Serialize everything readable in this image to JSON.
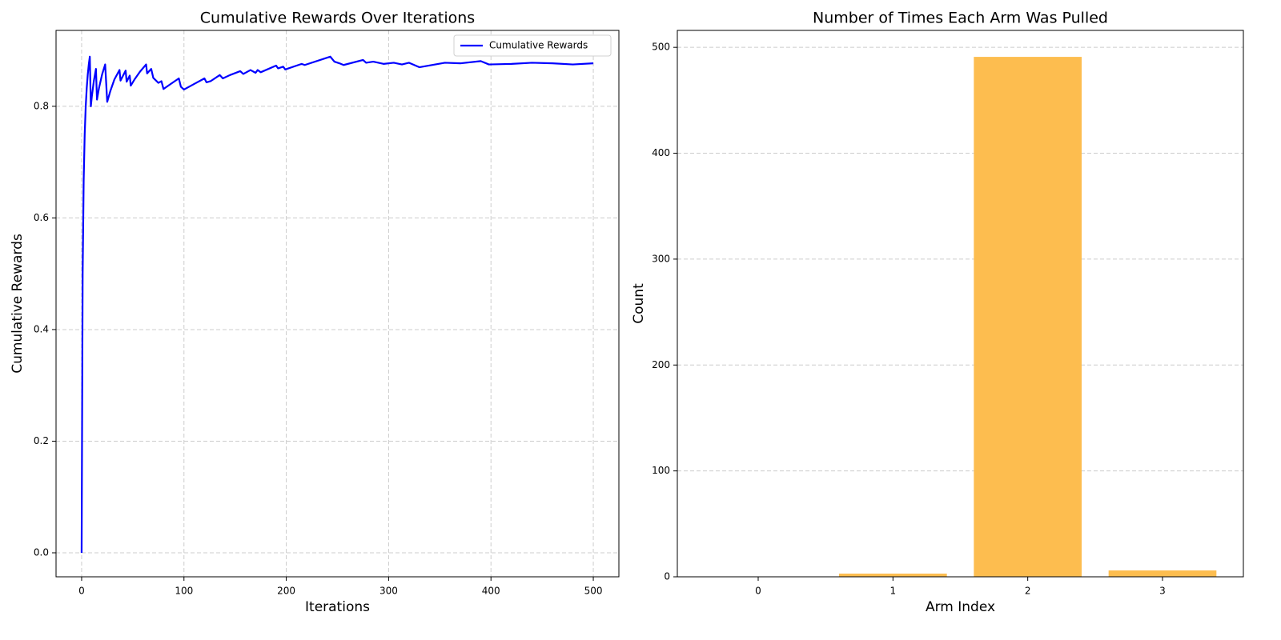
{
  "chart_data": [
    {
      "type": "line",
      "title": "Cumulative Rewards Over Iterations",
      "xlabel": "Iterations",
      "ylabel": "Cumulative Rewards",
      "x": [
        0,
        1,
        2,
        3,
        4,
        5,
        6,
        7,
        8,
        9,
        10,
        12,
        14,
        15,
        17,
        20,
        23,
        25,
        28,
        32,
        37,
        38,
        43,
        44,
        47,
        48,
        52,
        57,
        63,
        64,
        68,
        70,
        75,
        78,
        80,
        87,
        95,
        97,
        100,
        110,
        120,
        122,
        126,
        135,
        138,
        145,
        155,
        158,
        165,
        170,
        172,
        175,
        190,
        192,
        197,
        199,
        215,
        218,
        243,
        247,
        252,
        256,
        275,
        278,
        285,
        295,
        305,
        313,
        320,
        325,
        330,
        355,
        370,
        390,
        398,
        420,
        440,
        460,
        480,
        500
      ],
      "series": [
        {
          "name": "Cumulative Rewards",
          "color": "#0000ff",
          "values": [
            0,
            0.5,
            0.667,
            0.75,
            0.8,
            0.833,
            0.857,
            0.875,
            0.889,
            0.8,
            0.818,
            0.846,
            0.867,
            0.812,
            0.833,
            0.857,
            0.875,
            0.808,
            0.827,
            0.848,
            0.865,
            0.846,
            0.864,
            0.844,
            0.855,
            0.837,
            0.849,
            0.862,
            0.875,
            0.859,
            0.867,
            0.851,
            0.842,
            0.845,
            0.831,
            0.84,
            0.85,
            0.835,
            0.83,
            0.84,
            0.85,
            0.843,
            0.845,
            0.856,
            0.85,
            0.856,
            0.863,
            0.858,
            0.865,
            0.86,
            0.865,
            0.861,
            0.873,
            0.868,
            0.871,
            0.866,
            0.876,
            0.874,
            0.889,
            0.88,
            0.877,
            0.874,
            0.883,
            0.878,
            0.88,
            0.876,
            0.878,
            0.875,
            0.878,
            0.874,
            0.87,
            0.878,
            0.877,
            0.881,
            0.875,
            0.876,
            0.878,
            0.877,
            0.875,
            0.877
          ]
        }
      ],
      "xlim": [
        -25,
        525
      ],
      "xticks": [
        0,
        100,
        200,
        300,
        400,
        500
      ],
      "ylim": [
        -0.043,
        0.936
      ],
      "yticks": [
        {
          "value": 0,
          "label": "0.0"
        },
        0.2,
        0.4,
        0.6,
        0.8
      ],
      "grid": true,
      "legend": "upper right"
    },
    {
      "type": "bar",
      "title": "Number of Times Each Arm Was Pulled",
      "xlabel": "Arm Index",
      "ylabel": "Count",
      "categories": [
        "0",
        "1",
        "2",
        "3"
      ],
      "values": [
        0,
        3,
        491,
        6
      ],
      "color": "#fdbd4f",
      "ylim": [
        0,
        516
      ],
      "yticks": [
        0,
        100,
        200,
        300,
        400,
        500
      ],
      "grid": true
    }
  ]
}
